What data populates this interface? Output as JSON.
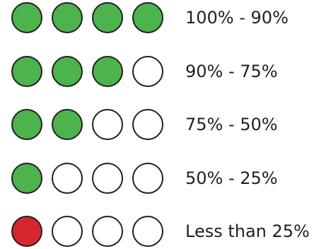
{
  "colors": {
    "filled": "#4cb34d",
    "warning": "#d7262e",
    "empty": "#ffffff",
    "stroke": "#231f20",
    "text": "#231f20"
  },
  "rows": [
    {
      "label": "100% - 90%",
      "filled_count": 4,
      "total": 4,
      "fill_color": "filled"
    },
    {
      "label": "90% - 75%",
      "filled_count": 3,
      "total": 4,
      "fill_color": "filled"
    },
    {
      "label": "75% - 50%",
      "filled_count": 2,
      "total": 4,
      "fill_color": "filled"
    },
    {
      "label": "50% - 25%",
      "filled_count": 1,
      "total": 4,
      "fill_color": "filled"
    },
    {
      "label": "Less than 25%",
      "filled_count": 1,
      "total": 4,
      "fill_color": "warning"
    }
  ]
}
